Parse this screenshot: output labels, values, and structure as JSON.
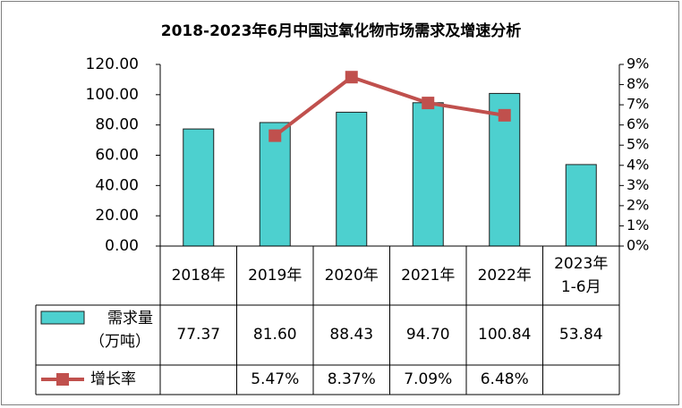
{
  "title": "2018-2023年6月中国过氧化物市场需求及增速分析",
  "colors": {
    "bar": "#4DD0CF",
    "bar_stroke": "#1f1f1f",
    "line": "#C0504D",
    "grid": "#000000"
  },
  "chart_data": {
    "type": "bar",
    "categories": [
      "2018年",
      "2019年",
      "2020年",
      "2021年",
      "2022年",
      "2023年\n1-6月"
    ],
    "series": [
      {
        "name": "需求量（万吨）",
        "type": "bar",
        "axis": "left",
        "values": [
          77.37,
          81.6,
          88.43,
          94.7,
          100.84,
          53.84
        ]
      },
      {
        "name": "增长率",
        "type": "line",
        "axis": "right",
        "values": [
          null,
          5.47,
          8.37,
          7.09,
          6.48,
          null
        ]
      }
    ],
    "y_left": {
      "ylim": [
        0,
        120
      ],
      "step": 20,
      "tick_labels": [
        "0.00",
        "20.00",
        "40.00",
        "60.00",
        "80.00",
        "100.00",
        "120.00"
      ]
    },
    "y_right": {
      "ylim": [
        0,
        9
      ],
      "step": 1,
      "tick_labels": [
        "0%",
        "1%",
        "2%",
        "3%",
        "4%",
        "5%",
        "6%",
        "7%",
        "8%",
        "9%"
      ]
    },
    "table": {
      "row1_label_line1": "需求量",
      "row1_label_line2": "（万吨）",
      "row1_values": [
        "77.37",
        "81.60",
        "88.43",
        "94.70",
        "100.84",
        "53.84"
      ],
      "row2_label": "增长率",
      "row2_values": [
        "",
        "5.47%",
        "8.37%",
        "7.09%",
        "6.48%",
        ""
      ]
    },
    "legend": "data-table",
    "grid": false
  }
}
